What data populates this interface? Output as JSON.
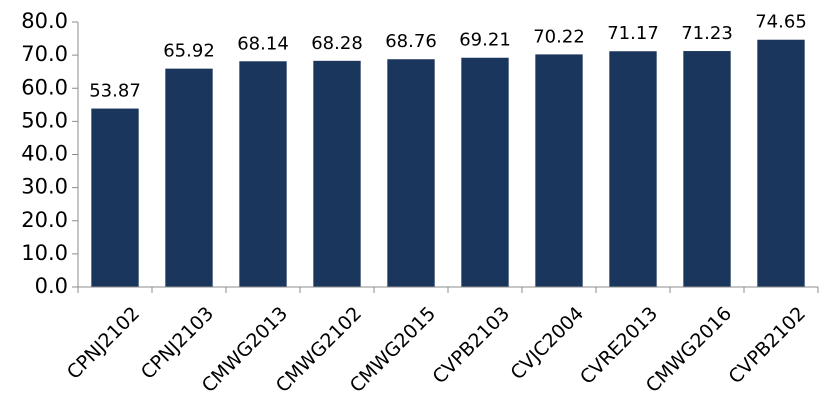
{
  "chart_data": {
    "type": "bar",
    "title": "",
    "xlabel": "",
    "ylabel": "",
    "categories": [
      "CPNJ2102",
      "CPNJ2103",
      "CMWG2013",
      "CMWG2102",
      "CMWG2015",
      "CVPB2103",
      "CVJC2004",
      "CVRE2013",
      "CMWG2016",
      "CVPB2102"
    ],
    "values": [
      53.87,
      65.92,
      68.14,
      68.28,
      68.76,
      69.21,
      70.22,
      71.17,
      71.23,
      74.65
    ],
    "value_labels": [
      "53.87",
      "65.92",
      "68.14",
      "68.28",
      "68.76",
      "69.21",
      "70.22",
      "71.17",
      "71.23",
      "74.65"
    ],
    "ylim": [
      0,
      80
    ],
    "yticks": [
      "0.0",
      "10.0",
      "20.0",
      "30.0",
      "40.0",
      "50.0",
      "60.0",
      "70.0",
      "80.0"
    ],
    "grid": false,
    "legend": "none",
    "bar_color": "#1b365d"
  }
}
